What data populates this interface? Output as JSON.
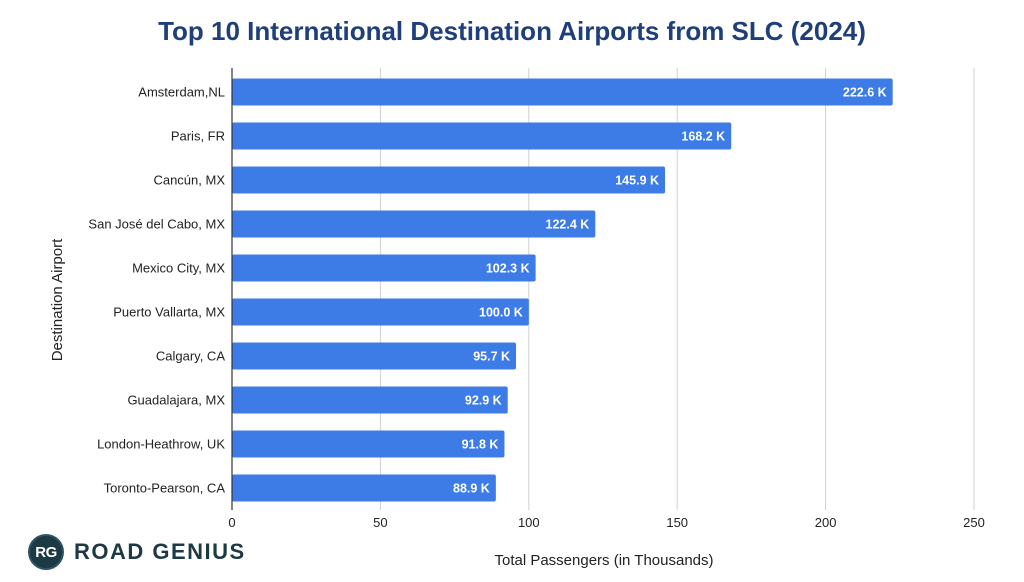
{
  "chart_data": {
    "type": "bar",
    "orientation": "horizontal",
    "title": "Top 10 International Destination Airports from SLC (2024)",
    "xlabel": "Total Passengers (in Thousands)",
    "ylabel": "Destination Airport",
    "categories": [
      "Amsterdam,NL",
      "Paris, FR",
      "Cancún, MX",
      "San José del Cabo, MX",
      "Mexico City, MX",
      "Puerto Vallarta, MX",
      "Calgary, CA",
      "Guadalajara, MX",
      "London-Heathrow, UK",
      "Toronto-Pearson, CA"
    ],
    "values": [
      222.6,
      168.2,
      145.9,
      122.4,
      102.3,
      100.0,
      95.7,
      92.9,
      91.8,
      88.9
    ],
    "data_labels": [
      "222.6 K",
      "168.2 K",
      "145.9 K",
      "122.4 K",
      "102.3 K",
      "100.0 K",
      "95.7 K",
      "92.9 K",
      "91.8 K",
      "88.9 K"
    ],
    "xlim": [
      0,
      250
    ],
    "xticks": [
      0,
      50,
      100,
      150,
      200,
      250
    ],
    "grid": "vertical",
    "bar_color": "#3d7be6",
    "title_color": "#1f3f7a"
  },
  "brand": {
    "badge_text": "RG",
    "name": "ROAD GENIUS"
  }
}
